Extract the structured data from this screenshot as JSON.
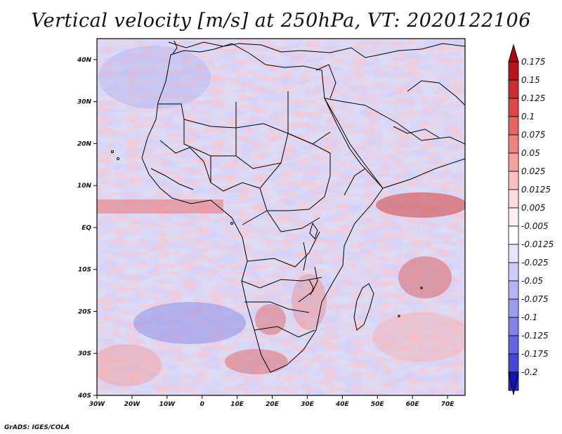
{
  "title": "Vertical velocity [m/s] at 250hPa, VT: 2020122106",
  "credit": "GrADS: IGES/COLA",
  "map": {
    "lon_range": [
      -30,
      75
    ],
    "lat_range": [
      -40,
      45
    ],
    "x_ticks": [
      {
        "value": -30,
        "label": "30W"
      },
      {
        "value": -20,
        "label": "20W"
      },
      {
        "value": -10,
        "label": "10W"
      },
      {
        "value": 0,
        "label": "0"
      },
      {
        "value": 10,
        "label": "10E"
      },
      {
        "value": 20,
        "label": "20E"
      },
      {
        "value": 30,
        "label": "30E"
      },
      {
        "value": 40,
        "label": "40E"
      },
      {
        "value": 50,
        "label": "50E"
      },
      {
        "value": 60,
        "label": "60E"
      },
      {
        "value": 70,
        "label": "70E"
      }
    ],
    "y_ticks": [
      {
        "value": 40,
        "label": "40N"
      },
      {
        "value": 30,
        "label": "30N"
      },
      {
        "value": 20,
        "label": "20N"
      },
      {
        "value": 10,
        "label": "10N"
      },
      {
        "value": 0,
        "label": "EQ"
      },
      {
        "value": -10,
        "label": "10S"
      },
      {
        "value": -20,
        "label": "20S"
      },
      {
        "value": -30,
        "label": "30S"
      },
      {
        "value": -40,
        "label": "40S"
      }
    ]
  },
  "colorbar": {
    "levels": [
      {
        "label": "0.175",
        "color": "#b8141e"
      },
      {
        "label": "0.15",
        "color": "#cc2d32"
      },
      {
        "label": "0.125",
        "color": "#dc4848"
      },
      {
        "label": "0.1",
        "color": "#e66464"
      },
      {
        "label": "0.075",
        "color": "#f08282"
      },
      {
        "label": "0.05",
        "color": "#f6a0a0"
      },
      {
        "label": "0.025",
        "color": "#fac0c0"
      },
      {
        "label": "0.0125",
        "color": "#fddcdc"
      },
      {
        "label": "0.005",
        "color": "#fff0f0"
      },
      {
        "label": "-0.005",
        "color": "#ffffff"
      },
      {
        "label": "-0.0125",
        "color": "#e6e6fa"
      },
      {
        "label": "-0.025",
        "color": "#cdcdf8"
      },
      {
        "label": "-0.05",
        "color": "#b4b4f4"
      },
      {
        "label": "-0.075",
        "color": "#9b9bf0"
      },
      {
        "label": "-0.1",
        "color": "#8282ec"
      },
      {
        "label": "-0.125",
        "color": "#6464e2"
      },
      {
        "label": "-0.175",
        "color": "#4646d6"
      },
      {
        "label": "-0.2",
        "color": "#2828c8"
      }
    ],
    "top_color": "#aa0a14",
    "bottom_color": "#1414b4"
  }
}
